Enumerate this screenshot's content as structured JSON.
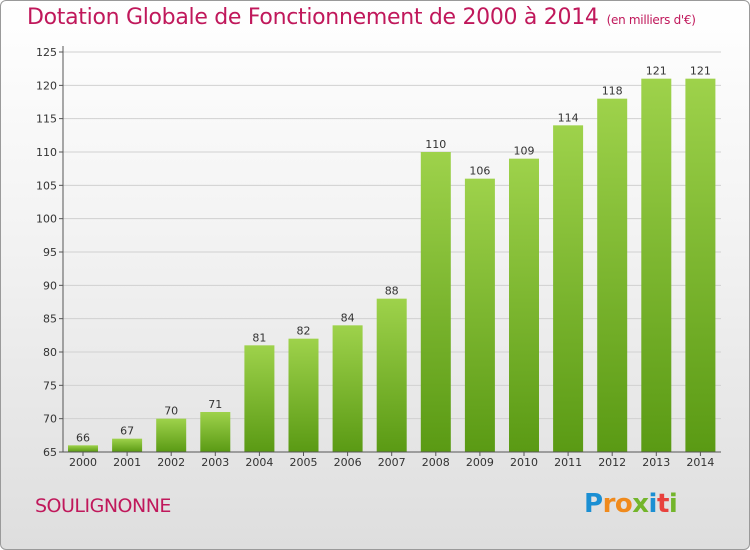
{
  "header": {
    "title": "Dotation Globale de Fonctionnement de 2000 à 2014",
    "unit": "(en milliers d'€)"
  },
  "footer": {
    "place": "SOULIGNONNE",
    "logo_letters": [
      "P",
      "r",
      "o",
      "x",
      "i",
      "t",
      "i"
    ]
  },
  "colors": {
    "title": "#c0185b",
    "bar_light": "#9ed24b",
    "bar_dark": "#5a9a14",
    "grid": "#d0d0d0"
  },
  "chart_data": {
    "type": "bar",
    "title": "Dotation Globale de Fonctionnement de 2000 à 2014",
    "categories": [
      "2000",
      "2001",
      "2002",
      "2003",
      "2004",
      "2005",
      "2006",
      "2007",
      "2008",
      "2009",
      "2010",
      "2011",
      "2012",
      "2013",
      "2014"
    ],
    "values": [
      66,
      67,
      70,
      71,
      81,
      82,
      84,
      88,
      110,
      106,
      109,
      114,
      118,
      121,
      121
    ],
    "ylim": [
      65,
      125
    ],
    "yticks": [
      65,
      70,
      75,
      80,
      85,
      90,
      95,
      100,
      105,
      110,
      115,
      120,
      125
    ],
    "grid": true,
    "xlabel": "",
    "ylabel": ""
  }
}
